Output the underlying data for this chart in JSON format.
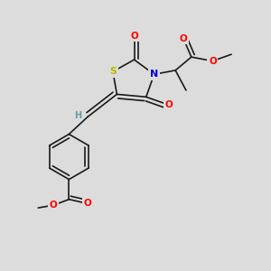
{
  "bg_color": "#dcdcdc",
  "atom_colors": {
    "C": "#000000",
    "H": "#5f9ea0",
    "O": "#ff0000",
    "N": "#0000cd",
    "S": "#b8b800"
  },
  "bond_color": "#1a1a1a",
  "bond_width": 1.2,
  "font_size_atoms": 7.5,
  "figsize": [
    3.0,
    3.0
  ],
  "dpi": 100
}
